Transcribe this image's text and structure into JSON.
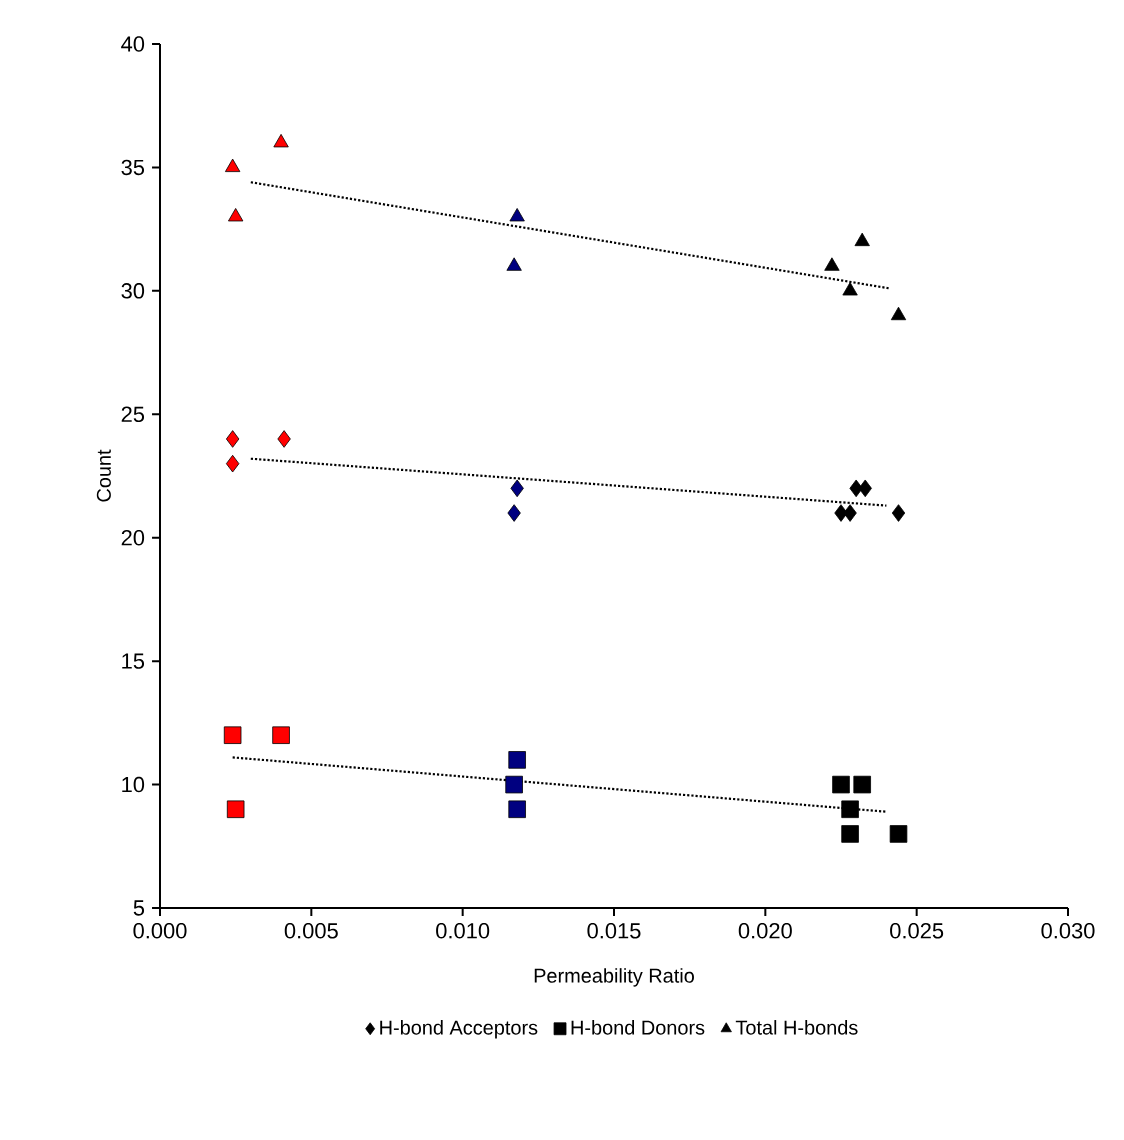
{
  "chart_data": {
    "type": "scatter",
    "xlabel": "Permeability Ratio",
    "ylabel": "Count",
    "xlim": [
      0,
      0.03
    ],
    "ylim": [
      5,
      40
    ],
    "xticks": [
      {
        "value": 0,
        "label": "0.000"
      },
      {
        "value": 0.005,
        "label": "0.005"
      },
      {
        "value": 0.01,
        "label": "0.010"
      },
      {
        "value": 0.015,
        "label": "0.015"
      },
      {
        "value": 0.02,
        "label": "0.020"
      },
      {
        "value": 0.025,
        "label": "0.025"
      },
      {
        "value": 0.03,
        "label": "0.030"
      }
    ],
    "yticks": [
      5,
      10,
      15,
      20,
      25,
      30,
      35,
      40
    ],
    "grid": false,
    "legend": "bottom",
    "series": [
      {
        "name": "H-bond Acceptors",
        "marker": "diamond",
        "color": "#000000",
        "x": [
          0.0024,
          0.0024,
          0.0041,
          0.0118,
          0.0117,
          0.0225,
          0.0228,
          0.023,
          0.0233,
          0.0244
        ],
        "values": [
          24,
          23,
          24,
          22,
          21,
          21,
          21,
          22,
          22,
          21
        ],
        "colors": [
          "#ff0000",
          "#ff0000",
          "#ff0000",
          "#000080",
          "#000080",
          "#000000",
          "#000000",
          "#000000",
          "#000000",
          "#000000"
        ]
      },
      {
        "name": "H-bond Donors",
        "marker": "square",
        "color": "#000000",
        "x": [
          0.0024,
          0.004,
          0.0025,
          0.0118,
          0.0117,
          0.0118,
          0.0225,
          0.0232,
          0.0228,
          0.0228,
          0.0244
        ],
        "values": [
          12,
          12,
          9,
          11,
          10,
          9,
          10,
          10,
          9,
          8,
          8
        ],
        "colors": [
          "#ff0000",
          "#ff0000",
          "#ff0000",
          "#000080",
          "#000080",
          "#000080",
          "#000000",
          "#000000",
          "#000000",
          "#000000",
          "#000000"
        ]
      },
      {
        "name": "Total H-bonds",
        "marker": "triangle",
        "color": "#000000",
        "x": [
          0.0024,
          0.0025,
          0.004,
          0.0118,
          0.0117,
          0.0222,
          0.0232,
          0.0228,
          0.0244
        ],
        "values": [
          35,
          33,
          36,
          33,
          31,
          31,
          32,
          30,
          29
        ],
        "colors": [
          "#ff0000",
          "#ff0000",
          "#ff0000",
          "#000080",
          "#000080",
          "#000000",
          "#000000",
          "#000000",
          "#000000"
        ]
      },
      {
        "type": "line",
        "line_style": "dotted",
        "color": "#000000",
        "x": [
          0.003,
          0.024
        ],
        "values": [
          23.2,
          21.3
        ]
      },
      {
        "type": "line",
        "line_style": "dotted",
        "color": "#000000",
        "x": [
          0.0024,
          0.024
        ],
        "values": [
          11.1,
          8.9
        ]
      },
      {
        "type": "line",
        "line_style": "dotted",
        "color": "#000000",
        "x": [
          0.003,
          0.0241
        ],
        "values": [
          34.4,
          30.1
        ]
      }
    ]
  }
}
